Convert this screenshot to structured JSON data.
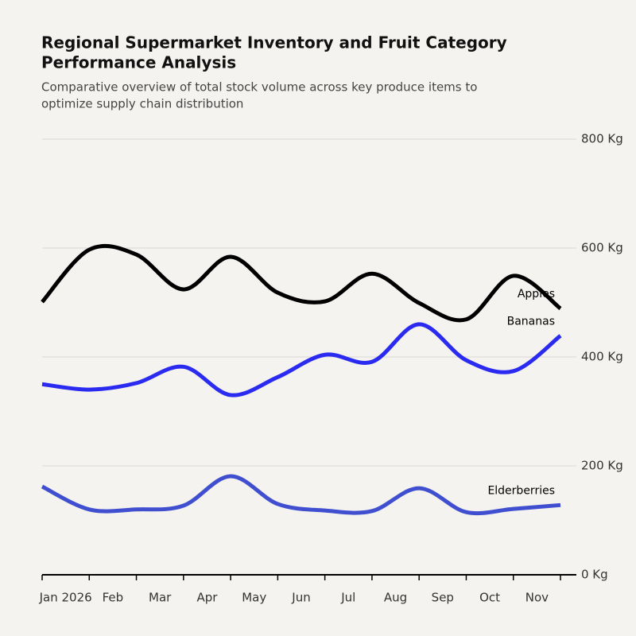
{
  "chart_data": {
    "type": "line",
    "title": [
      "Regional Supermarket Inventory and Fruit Category",
      "Performance Analysis"
    ],
    "subtitle": [
      "Comparative overview of total stock volume across key produce items to",
      "optimize supply chain distribution"
    ],
    "x": [
      "2026-01",
      "2026-02",
      "2026-03",
      "2026-04",
      "2026-05",
      "2026-06",
      "2026-07",
      "2026-08",
      "2026-09",
      "2026-10",
      "2026-11",
      "2026-12"
    ],
    "xlim": [
      "2026-01",
      "2026-12"
    ],
    "xticks": [
      {
        "value": "2026-01",
        "label": "Jan 2026"
      },
      {
        "value": "2026-02",
        "label": "Feb"
      },
      {
        "value": "2026-03",
        "label": "Mar"
      },
      {
        "value": "2026-04",
        "label": "Apr"
      },
      {
        "value": "2026-05",
        "label": "May"
      },
      {
        "value": "2026-06",
        "label": "Jun"
      },
      {
        "value": "2026-07",
        "label": "Jul"
      },
      {
        "value": "2026-08",
        "label": "Aug"
      },
      {
        "value": "2026-09",
        "label": "Sep"
      },
      {
        "value": "2026-10",
        "label": "Oct"
      },
      {
        "value": "2026-11",
        "label": "Nov"
      }
    ],
    "ylim": [
      0,
      800
    ],
    "yticks": [
      {
        "value": 0,
        "label": "0 Kg"
      },
      {
        "value": 200,
        "label": "200 Kg"
      },
      {
        "value": 400,
        "label": "400 Kg"
      },
      {
        "value": 600,
        "label": "600 Kg"
      },
      {
        "value": 800,
        "label": "800 Kg"
      }
    ],
    "grid": true,
    "series": [
      {
        "name": "Apples",
        "color": "#000000",
        "values": [
          501,
          597,
          588,
          524,
          584,
          518,
          502,
          553,
          499,
          469,
          549,
          489
        ]
      },
      {
        "name": "Bananas",
        "color": "#2a2af0",
        "values": [
          350,
          340,
          352,
          382,
          330,
          363,
          404,
          391,
          460,
          394,
          374,
          439
        ]
      },
      {
        "name": "Elderberries",
        "color": "#3f4fcf",
        "values": [
          162,
          120,
          120,
          127,
          181,
          130,
          118,
          117,
          159,
          115,
          121,
          128
        ]
      }
    ]
  }
}
